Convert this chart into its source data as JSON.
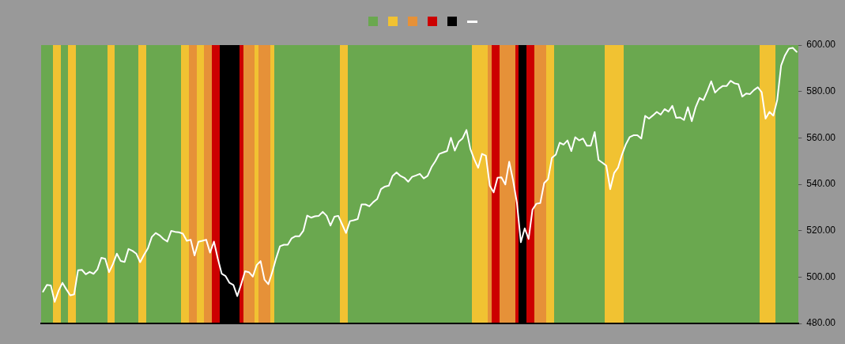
{
  "chart_data": {
    "type": "line",
    "categories": [
      null,
      null,
      null,
      null,
      null,
      null,
      null,
      null,
      null,
      null,
      null,
      null,
      null,
      null,
      null,
      null,
      null,
      null,
      null,
      null,
      null,
      null,
      null,
      null,
      null,
      null,
      null,
      null,
      null,
      null,
      null,
      null,
      null,
      null,
      null,
      null,
      null,
      null,
      null,
      null,
      null,
      null,
      null,
      null,
      null,
      null,
      null,
      null,
      null,
      null,
      null,
      null,
      null,
      null,
      null,
      null,
      null,
      null,
      null,
      null,
      null,
      null,
      null,
      null,
      null,
      null,
      null,
      null,
      null,
      null,
      null,
      null,
      null,
      null,
      null,
      null,
      null,
      null,
      null,
      null,
      null,
      null,
      null,
      null,
      null,
      null,
      null,
      null,
      null,
      null,
      null,
      null,
      null,
      null,
      null,
      null,
      null,
      null,
      null,
      null,
      null,
      null,
      null,
      null,
      null,
      null,
      null,
      null,
      null,
      null,
      null,
      null,
      null,
      null,
      null,
      null,
      null,
      null,
      null,
      null,
      null,
      null,
      null,
      null,
      null,
      null,
      null,
      null,
      null,
      null,
      null,
      null,
      null,
      null,
      null,
      null,
      null,
      null,
      null,
      null,
      null,
      null,
      null,
      null,
      null,
      null,
      null,
      null,
      null,
      null,
      null,
      null,
      null,
      null,
      null,
      null,
      null,
      null,
      null,
      null,
      null,
      null,
      null,
      null,
      null,
      null,
      null,
      null,
      null,
      null,
      null,
      null,
      null,
      null,
      null,
      null,
      null,
      null,
      null,
      null,
      null,
      null,
      null,
      null,
      null,
      null,
      null,
      null,
      null,
      null,
      null,
      null,
      null,
      null,
      null
    ],
    "series": [
      {
        "color": "#ffffff",
        "values": [
          493.7,
          496.6,
          496.4,
          489.3,
          494.1,
          497.5,
          494.7,
          492.1,
          492.5,
          502.9,
          503.1,
          501.2,
          502.2,
          501.4,
          503.3,
          508.3,
          507.9,
          502.1,
          505.6,
          510.1,
          506.9,
          506.5,
          512.1,
          511.3,
          510.1,
          506.4,
          509.6,
          512.4,
          517.3,
          519.0,
          518.0,
          516.4,
          515.3,
          519.9,
          519.5,
          519.3,
          518.7,
          515.6,
          516.1,
          509.3,
          515.2,
          515.6,
          516.1,
          510.5,
          515.3,
          507.9,
          501.4,
          500.4,
          497.5,
          496.6,
          491.8,
          496.9,
          502.5,
          502.1,
          500.2,
          505.2,
          506.9,
          498.9,
          496.9,
          502.1,
          508.1,
          513.3,
          513.9,
          513.9,
          516.7,
          517.6,
          517.6,
          519.9,
          526.5,
          525.6,
          526.2,
          526.4,
          528.1,
          526.4,
          522.2,
          526.0,
          526.4,
          522.7,
          519.0,
          524.1,
          524.5,
          525.0,
          531.3,
          531.3,
          530.5,
          532.3,
          533.6,
          537.9,
          539.0,
          539.4,
          543.6,
          545.1,
          543.6,
          542.8,
          541.1,
          543.2,
          543.8,
          544.5,
          542.5,
          543.6,
          547.4,
          550.0,
          553.1,
          553.7,
          554.3,
          560.0,
          554.5,
          558.3,
          559.8,
          563.4,
          555.2,
          550.8,
          547.1,
          553.1,
          552.3,
          539.4,
          536.5,
          542.8,
          543.0,
          539.9,
          549.7,
          541.7,
          531.9,
          515.0,
          521.0,
          516.4,
          529.1,
          531.6,
          531.9,
          540.5,
          542.2,
          551.4,
          552.8,
          557.9,
          557.1,
          558.9,
          554.3,
          560.3,
          558.9,
          559.7,
          556.6,
          556.6,
          562.5,
          550.5,
          549.3,
          548.0,
          537.9,
          544.8,
          547.1,
          552.6,
          557.1,
          560.3,
          561.1,
          561.1,
          559.7,
          569.5,
          568.3,
          569.7,
          571.2,
          570.0,
          572.4,
          571.3,
          573.8,
          568.6,
          568.8,
          567.7,
          573.2,
          567.2,
          573.2,
          577.2,
          576.3,
          580.1,
          584.4,
          579.5,
          581.2,
          582.4,
          582.4,
          584.6,
          583.5,
          583.1,
          577.8,
          579.1,
          578.9,
          580.6,
          581.8,
          579.7,
          568.3,
          571.2,
          569.6,
          576.3,
          591.2,
          595.6,
          598.5,
          598.8,
          597.1
        ]
      }
    ],
    "ylim": [
      480,
      600
    ],
    "yticks": [
      {
        "value": 480,
        "label": "480.00"
      },
      {
        "value": 500,
        "label": "500.00"
      },
      {
        "value": 520,
        "label": "520.00"
      },
      {
        "value": 540,
        "label": "540.00"
      },
      {
        "value": 560,
        "label": "560.00"
      },
      {
        "value": 580,
        "label": "580.00"
      },
      {
        "value": 600,
        "label": "600.00"
      }
    ],
    "tick_labels": "y",
    "marker": "none",
    "line_style": "solid"
  }
}
